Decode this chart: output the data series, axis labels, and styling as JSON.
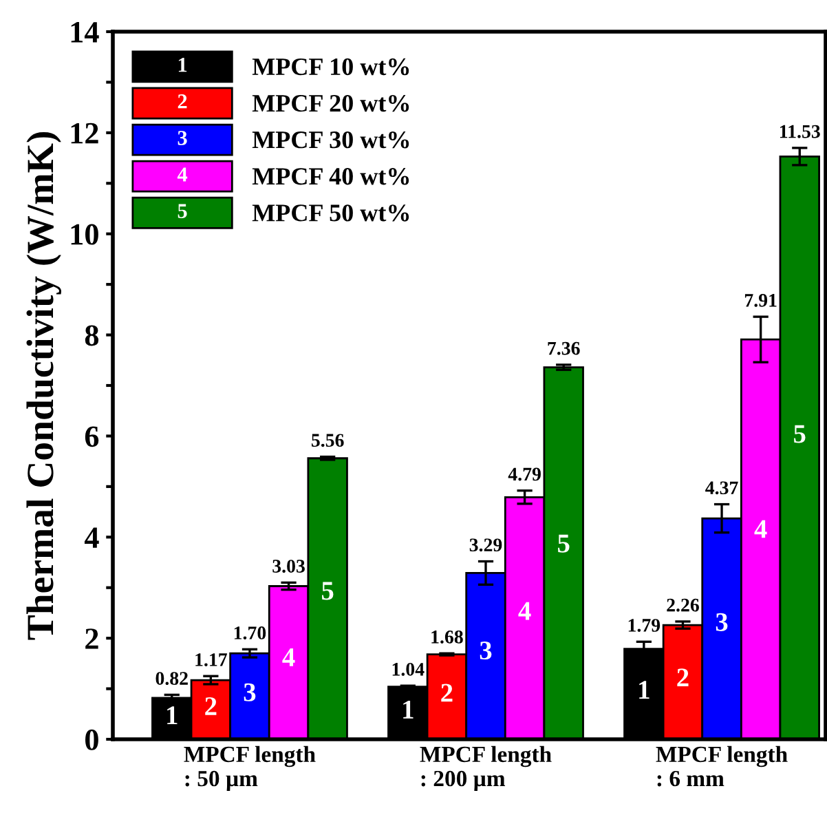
{
  "chart_data": {
    "type": "bar",
    "ylabel": "Thermal Conductivity (W/mK)",
    "categories": [
      "MPCF length\n: 50 µm",
      "MPCF length\n: 200 µm",
      "MPCF length\n: 6 mm"
    ],
    "series": [
      {
        "name": "MPCF 10 wt%",
        "color": "#000000",
        "values": [
          0.82,
          1.04,
          1.79
        ],
        "value_labels": [
          "0.82",
          "1.04",
          "1.79"
        ],
        "errors": [
          0.06,
          0.02,
          0.14
        ]
      },
      {
        "name": "MPCF 20 wt%",
        "color": "#ff0000",
        "values": [
          1.17,
          1.68,
          2.26
        ],
        "value_labels": [
          "1.17",
          "1.68",
          "2.26"
        ],
        "errors": [
          0.08,
          0.02,
          0.07
        ]
      },
      {
        "name": "MPCF 30 wt%",
        "color": "#0000ff",
        "values": [
          1.7,
          3.29,
          4.37
        ],
        "value_labels": [
          "1.70",
          "3.29",
          "4.37"
        ],
        "errors": [
          0.08,
          0.23,
          0.28
        ]
      },
      {
        "name": "MPCF 40 wt%",
        "color": "#ff00ff",
        "values": [
          3.03,
          4.79,
          7.91
        ],
        "value_labels": [
          "3.03",
          "4.79",
          "7.91"
        ],
        "errors": [
          0.07,
          0.13,
          0.45
        ]
      },
      {
        "name": "MPCF 50 wt%",
        "color": "#008000",
        "values": [
          5.56,
          7.36,
          11.53
        ],
        "value_labels": [
          "5.56",
          "7.36",
          "11.53"
        ],
        "errors": [
          0.03,
          0.05,
          0.17
        ]
      }
    ],
    "annotations": [
      "1",
      "2",
      "3",
      "4",
      "5",
      "1",
      "2",
      "3",
      "4",
      "5",
      "1",
      "2",
      "3",
      "4",
      "5"
    ],
    "ylim": [
      0,
      14
    ],
    "yticks": [
      0,
      {
        "value": 1,
        "label": null
      },
      2,
      {
        "value": 3,
        "label": null
      },
      4,
      {
        "value": 5,
        "label": null
      },
      6,
      {
        "value": 7,
        "label": null
      },
      8,
      {
        "value": 9,
        "label": null
      },
      10,
      {
        "value": 11,
        "label": null
      },
      12,
      {
        "value": 13,
        "label": null
      },
      14
    ],
    "grid": false,
    "legend": "top left"
  }
}
